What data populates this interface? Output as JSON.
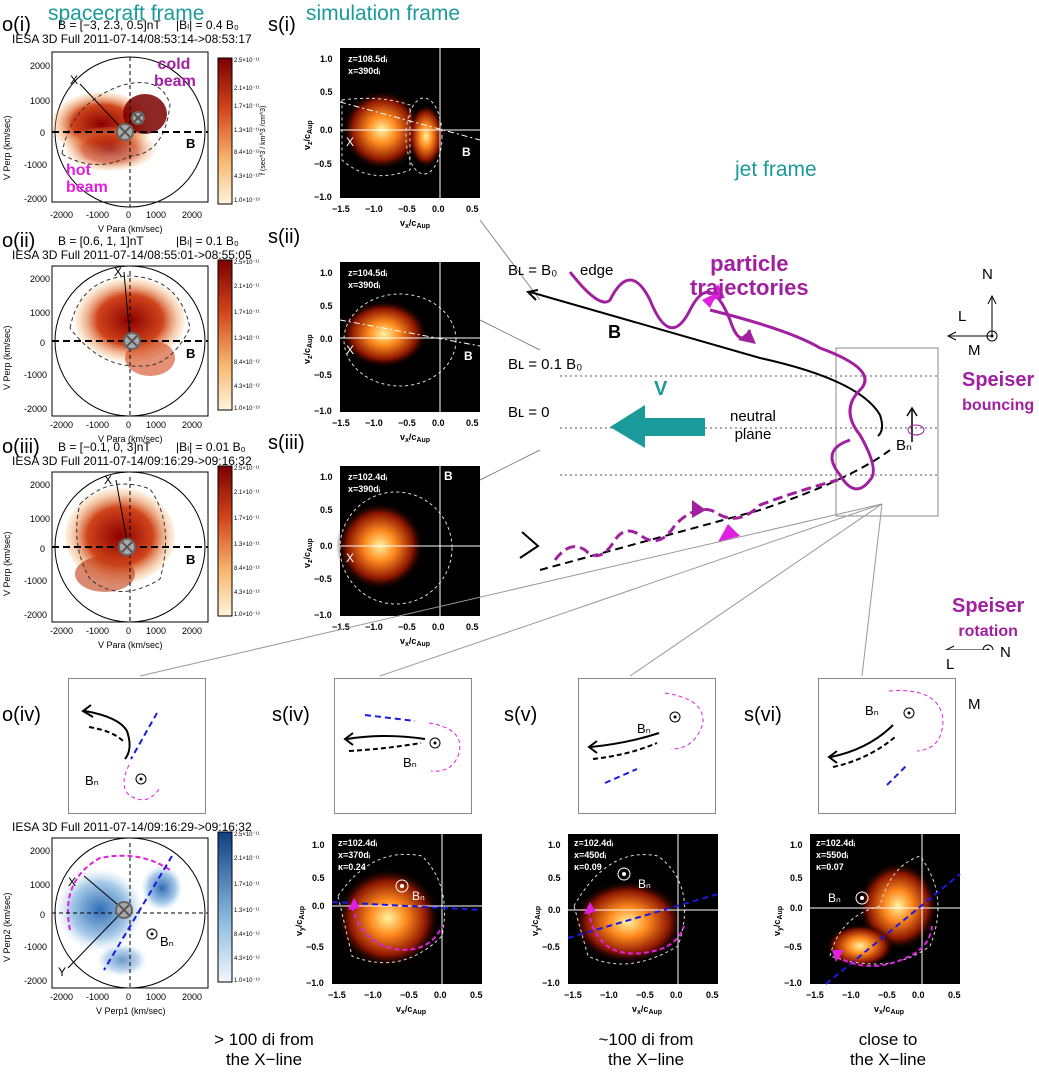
{
  "headers": {
    "spacecraft": "spacecraft frame",
    "simulation": "simulation frame",
    "jet": "jet frame"
  },
  "panels": {
    "oi": {
      "id": "o(i)",
      "bvec": "B = [−3, 2.3, 0.5]nT",
      "bmag": "|Bₗ| = 0.4 B₀",
      "time": "IESA 3D Full 2011-07-14/08:53:14->08:53:17",
      "cold": "cold beam",
      "hot": "hot beam"
    },
    "oii": {
      "id": "o(ii)",
      "bvec": "B = [0.6, 1, 1]nT",
      "bmag": "|Bₗ| = 0.1 B₀",
      "time": "IESA 3D Full 2011-07-14/08:55:01->08:55:05"
    },
    "oiii": {
      "id": "o(iii)",
      "bvec": "B = [−0.1, 0, 3]nT",
      "bmag": "|Bₗ| = 0.01 B₀",
      "time": "IESA 3D Full 2011-07-14/09:16:29->09:16:32"
    },
    "oiv": {
      "id": "o(iv)",
      "time": "IESA 3D Full 2011-07-14/09:16:29->09:16:32"
    },
    "si": {
      "id": "s(i)",
      "z": "z=108.5dᵢ",
      "x": "x=390dᵢ"
    },
    "sii": {
      "id": "s(ii)",
      "z": "z=104.5dᵢ",
      "x": "x=390dᵢ"
    },
    "siii": {
      "id": "s(iii)",
      "z": "z=102.4dᵢ",
      "x": "x=390dᵢ"
    },
    "siv": {
      "id": "s(iv)",
      "z": "z=102.4dᵢ",
      "x": "x=370dᵢ",
      "k": "κ=0.24"
    },
    "sv": {
      "id": "s(v)",
      "z": "z=102.4dᵢ",
      "x": "x=450dᵢ",
      "k": "κ=0.09"
    },
    "svi": {
      "id": "s(vi)",
      "z": "z=102.4dᵢ",
      "x": "x=550dᵢ",
      "k": "κ=0.07"
    }
  },
  "axes": {
    "vpara": "V Para (km/sec)",
    "vperp": "V Perp (km/sec)",
    "vperp1": "V Perp1 (km/sec)",
    "vperp2": "V Perp2 (km/sec)",
    "vx": "vₓ/cₐᵤₚ",
    "vz": "v_z/c_Aup",
    "vy": "v_y/c_Aup",
    "cbar": "f (sec^3 / km^3 /cm^3)",
    "cticks": [
      "2.5×10⁻¹¹",
      "2.1×10⁻¹¹",
      "1.7×10⁻¹¹",
      "1.3×10⁻¹¹",
      "8.4×10⁻¹²",
      "4.3×10⁻¹²",
      "1.0×10⁻¹³"
    ],
    "oticks": [
      "-2000",
      "-1000",
      "0",
      "1000",
      "2000"
    ],
    "sxticks": [
      "−1.5",
      "−1.0",
      "−0.5",
      "0.0",
      "0.5"
    ],
    "syticks": [
      "1.0",
      "0.5",
      "0.0",
      "−0.5",
      "−1.0"
    ]
  },
  "jet": {
    "edge_lbl": "Bʟ = B₀",
    "edge": "edge",
    "mid_lbl": "Bʟ = 0.1 B₀",
    "zero_lbl": "Bʟ = 0",
    "neutral1": "neutral",
    "neutral2": "plane",
    "B": "B",
    "V": "V",
    "traj1": "particle",
    "traj2": "trajectories",
    "bounce1": "Speiser",
    "bounce2": "bouncing",
    "rot1": "Speiser",
    "rot2": "rotation",
    "BN": "Bₙ",
    "coordsA": {
      "N": "N",
      "L": "L",
      "M": "M"
    },
    "coordsB": {
      "N": "N",
      "L": "L",
      "M": "M"
    }
  },
  "captions": {
    "c1a": "> 100 di from",
    "c1b": "the X−line",
    "c2a": "~100 di from",
    "c2b": "the X−line",
    "c3a": "close to",
    "c3b": "the X−line"
  },
  "marks": {
    "X": "X",
    "Y": "Y",
    "B": "B"
  }
}
